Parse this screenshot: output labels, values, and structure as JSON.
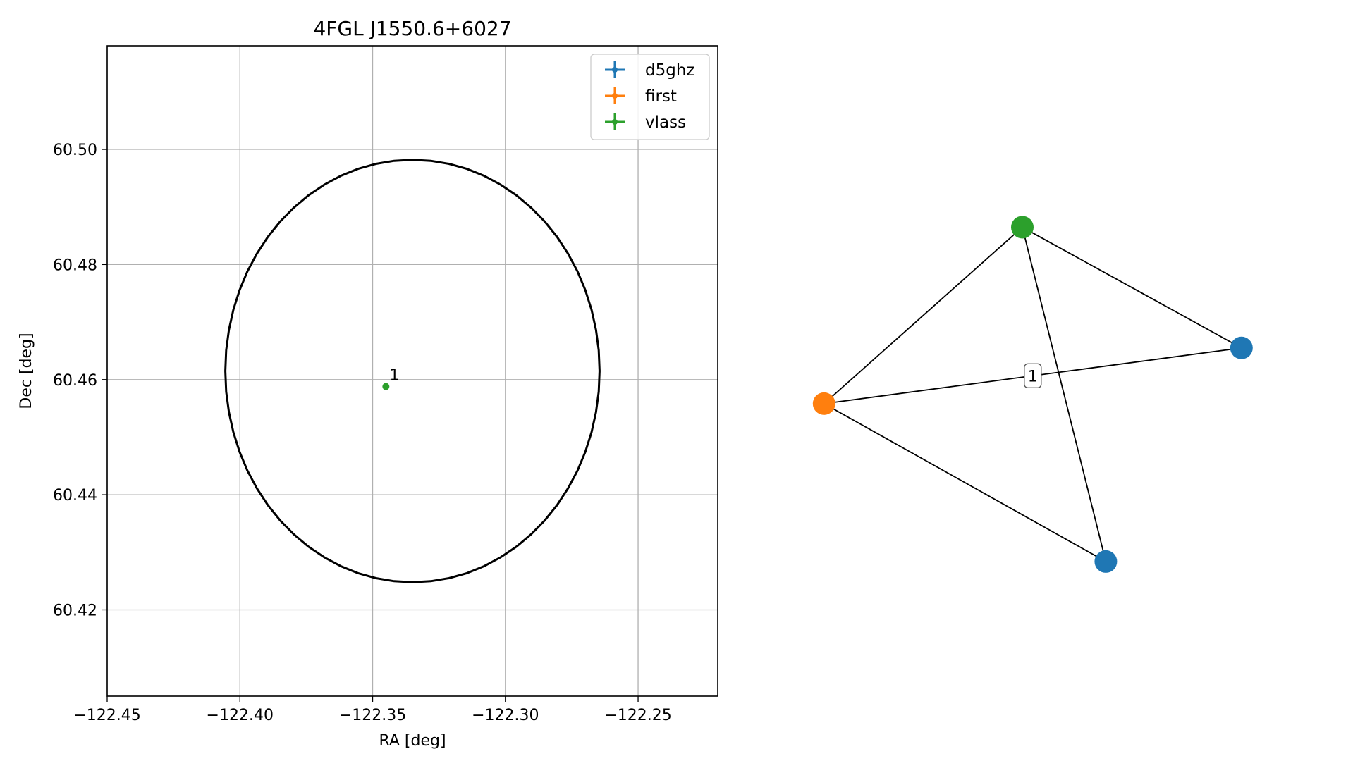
{
  "chart_data": [
    {
      "type": "scatter",
      "title": "4FGL J1550.6+6027",
      "xlabel": "RA [deg]",
      "ylabel": "Dec [deg]",
      "xlim": [
        -122.45,
        -122.22
      ],
      "ylim": [
        60.405,
        60.518
      ],
      "grid": true,
      "xticks": [
        -122.45,
        -122.4,
        -122.35,
        -122.3,
        -122.25
      ],
      "xtick_labels": [
        "−122.45",
        "−122.40",
        "−122.35",
        "−122.30",
        "−122.25"
      ],
      "yticks": [
        60.42,
        60.44,
        60.46,
        60.48,
        60.5
      ],
      "ytick_labels": [
        "60.42",
        "60.44",
        "60.46",
        "60.48",
        "60.50"
      ],
      "legend_position": "upper-right",
      "series": [
        {
          "name": "d5ghz",
          "color": "#1f77b4",
          "points": []
        },
        {
          "name": "first",
          "color": "#ff7f0e",
          "points": []
        },
        {
          "name": "vlass",
          "color": "#2ca02c",
          "points": [
            {
              "x": -122.345,
              "y": 60.4588,
              "label": "1"
            }
          ]
        }
      ],
      "ellipse": {
        "center": [
          -122.335,
          60.4615
        ],
        "radius_ra": 0.0705,
        "radius_dec": 0.0367,
        "color": "#000000"
      }
    },
    {
      "type": "network",
      "nodes": [
        {
          "id": "d5ghz-a",
          "color": "#1f77b4",
          "x": 0.92,
          "y": 0.58
        },
        {
          "id": "d5ghz-b",
          "color": "#1f77b4",
          "x": 0.66,
          "y": 0.12
        },
        {
          "id": "first",
          "color": "#ff7f0e",
          "x": 0.12,
          "y": 0.46
        },
        {
          "id": "vlass",
          "color": "#2ca02c",
          "x": 0.5,
          "y": 0.84
        }
      ],
      "edges": [
        {
          "source": "vlass",
          "target": "first",
          "label": ""
        },
        {
          "source": "vlass",
          "target": "d5ghz-a",
          "label": ""
        },
        {
          "source": "vlass",
          "target": "d5ghz-b",
          "label": ""
        },
        {
          "source": "first",
          "target": "d5ghz-a",
          "label": "1"
        },
        {
          "source": "first",
          "target": "d5ghz-b",
          "label": ""
        }
      ]
    }
  ]
}
